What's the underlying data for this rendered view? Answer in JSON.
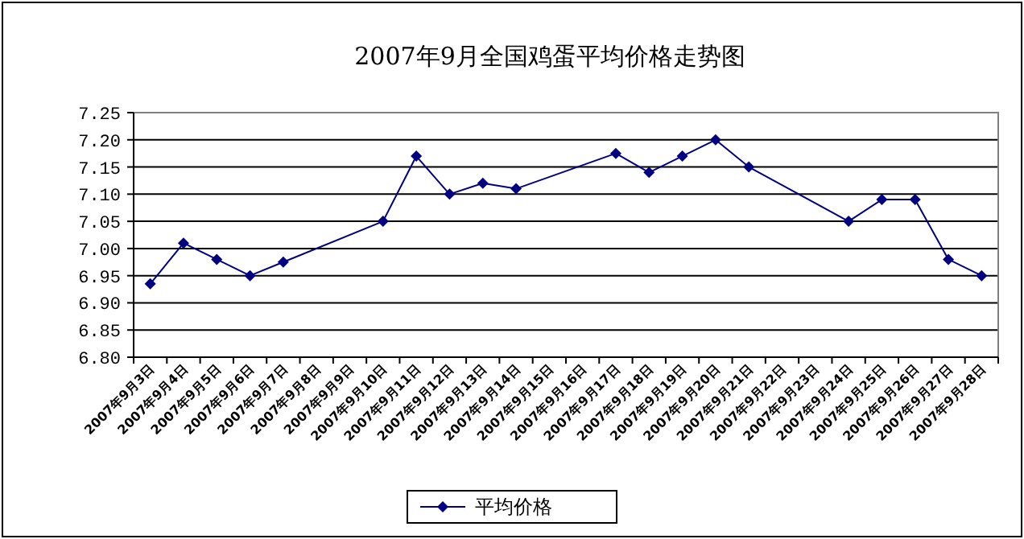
{
  "chart_data": {
    "type": "line",
    "title": "2007年9月全国鸡蛋平均价格走势图",
    "categories": [
      "2007年9月3日",
      "2007年9月4日",
      "2007年9月5日",
      "2007年9月6日",
      "2007年9月7日",
      "2007年9月8日",
      "2007年9月9日",
      "2007年9月10日",
      "2007年9月11日",
      "2007年9月12日",
      "2007年9月13日",
      "2007年9月14日",
      "2007年9月15日",
      "2007年9月16日",
      "2007年9月17日",
      "2007年9月18日",
      "2007年9月19日",
      "2007年9月20日",
      "2007年9月21日",
      "2007年9月22日",
      "2007年9月23日",
      "2007年9月24日",
      "2007年9月25日",
      "2007年9月26日",
      "2007年9月27日",
      "2007年9月28日"
    ],
    "series": [
      {
        "name": "平均价格",
        "color": "#000080",
        "values": [
          6.935,
          7.01,
          6.98,
          6.95,
          6.975,
          null,
          null,
          7.05,
          7.17,
          7.1,
          7.12,
          7.11,
          null,
          null,
          7.175,
          7.14,
          7.17,
          7.2,
          7.15,
          null,
          null,
          7.05,
          7.09,
          7.09,
          6.98,
          6.95
        ]
      }
    ],
    "ylim": [
      6.8,
      7.25
    ],
    "yticks": [
      {
        "value": 6.8,
        "label": "6.80"
      },
      {
        "value": 6.85,
        "label": "6.85"
      },
      {
        "value": 6.9,
        "label": "6.90"
      },
      {
        "value": 6.95,
        "label": "6.95"
      },
      {
        "value": 7.0,
        "label": "7.00"
      },
      {
        "value": 7.05,
        "label": "7.05"
      },
      {
        "value": 7.1,
        "label": "7.10"
      },
      {
        "value": 7.15,
        "label": "7.15"
      },
      {
        "value": 7.2,
        "label": "7.20"
      },
      {
        "value": 7.25,
        "label": "7.25"
      }
    ],
    "grid": "y",
    "legend": "bottom",
    "marker": "diamond",
    "line_style": "solid"
  }
}
